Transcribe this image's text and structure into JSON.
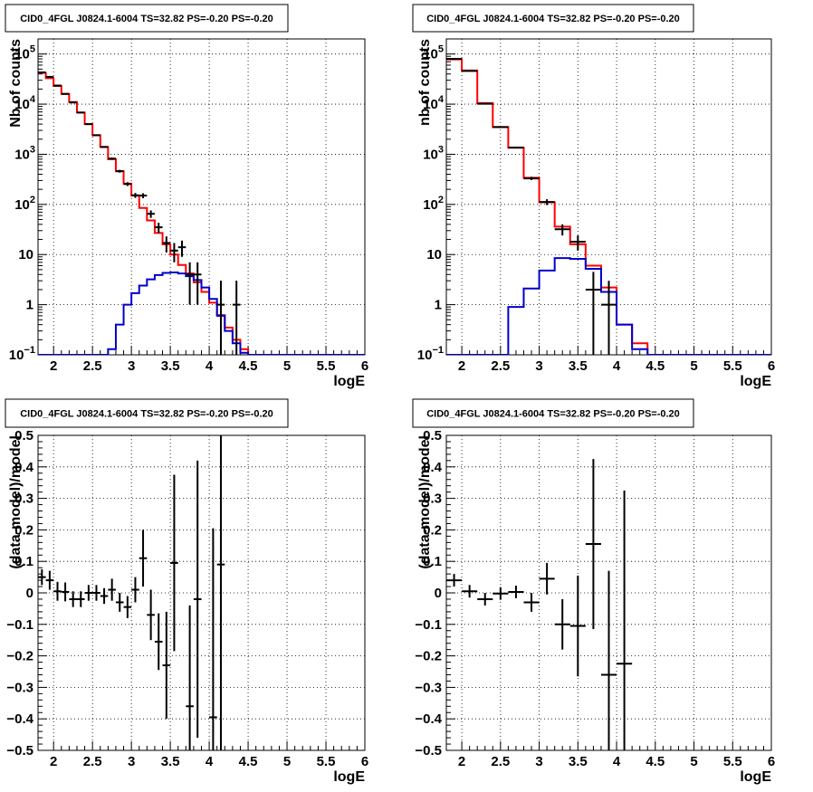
{
  "colors": {
    "data": "#000000",
    "total_model": "#ff0000",
    "source_model": "#0000cc",
    "grid": "#000000",
    "frame": "#000000"
  },
  "chart_data": [
    {
      "type": "line",
      "title": "CID0_4FGL J0824.1-6004 TS=32.82 PS=-0.20 PS=-0.20",
      "xlabel": "logE",
      "ylabel": "Nb of counts",
      "xlim": [
        1.8,
        6
      ],
      "ylim": [
        0.1,
        200000
      ],
      "yscale": "log",
      "grid": true,
      "xticks": [
        "2",
        "2.5",
        "3",
        "3.5",
        "4",
        "4.5",
        "5",
        "5.5",
        "6"
      ],
      "yticks": [
        {
          "value": 0.1,
          "label": "10",
          "sup": "−1"
        },
        {
          "value": 1,
          "label": "1",
          "sup": ""
        },
        {
          "value": 10,
          "label": "10",
          "sup": ""
        },
        {
          "value": 100,
          "label": "10",
          "sup": "2"
        },
        {
          "value": 1000,
          "label": "10",
          "sup": "3"
        },
        {
          "value": 10000,
          "label": "10",
          "sup": "4"
        },
        {
          "value": 100000,
          "label": "10",
          "sup": "5"
        }
      ],
      "bin_edges": [
        1.8,
        1.9,
        2.0,
        2.1,
        2.2,
        2.3,
        2.4,
        2.5,
        2.6,
        2.7,
        2.8,
        2.9,
        3.0,
        3.1,
        3.2,
        3.3,
        3.4,
        3.5,
        3.6,
        3.7,
        3.8,
        3.9,
        4.0,
        4.1,
        4.2,
        4.3,
        4.4,
        4.5,
        4.6,
        4.7,
        4.8,
        4.9,
        5.0,
        5.1,
        5.2,
        5.3,
        5.4,
        5.5,
        5.6,
        5.7,
        5.8,
        5.9,
        6.0
      ],
      "series": [
        {
          "role": "total_model",
          "step": [
            42000,
            33000,
            23000,
            16000,
            11000,
            6800,
            4000,
            2400,
            1400,
            800,
            460,
            260,
            150,
            85,
            48,
            27,
            16,
            10,
            6.2,
            4.2,
            2.8,
            1.8,
            1.1,
            0.62,
            0.35,
            0.2,
            0.13,
            0.1,
            0.1,
            0.1,
            0.1,
            0.1,
            0.1,
            0.1,
            0.1,
            0.1,
            0.1,
            0.1,
            0.1,
            0.1,
            0.1,
            0.1
          ]
        },
        {
          "role": "source_model",
          "step": [
            0.1,
            0.1,
            0.1,
            0.1,
            0.1,
            0.1,
            0.1,
            0.1,
            0.1,
            0.13,
            0.4,
            1.0,
            1.7,
            2.4,
            3.2,
            3.9,
            4.3,
            4.4,
            4.2,
            3.7,
            3.1,
            2.2,
            1.3,
            0.6,
            0.3,
            0.17,
            0.11,
            0.1,
            0.1,
            0.1,
            0.1,
            0.1,
            0.1,
            0.1,
            0.1,
            0.1,
            0.1,
            0.1,
            0.1,
            0.1,
            0.1,
            0.1
          ]
        },
        {
          "role": "data",
          "points": [
            {
              "x": 1.85,
              "y": 43000,
              "err": 300
            },
            {
              "x": 1.95,
              "y": 35000,
              "err": 300
            },
            {
              "x": 2.05,
              "y": 23500,
              "err": 250
            },
            {
              "x": 2.15,
              "y": 16000,
              "err": 200
            },
            {
              "x": 2.25,
              "y": 10800,
              "err": 150
            },
            {
              "x": 2.35,
              "y": 6800,
              "err": 120
            },
            {
              "x": 2.45,
              "y": 4000,
              "err": 90
            },
            {
              "x": 2.55,
              "y": 2400,
              "err": 70
            },
            {
              "x": 2.65,
              "y": 1400,
              "err": 50
            },
            {
              "x": 2.75,
              "y": 820,
              "err": 40
            },
            {
              "x": 2.85,
              "y": 460,
              "err": 30
            },
            {
              "x": 2.95,
              "y": 255,
              "err": 22
            },
            {
              "x": 3.05,
              "y": 152,
              "err": 17
            },
            {
              "x": 3.15,
              "y": 150,
              "err": 17
            },
            {
              "x": 3.25,
              "y": 65,
              "err": 11
            },
            {
              "x": 3.35,
              "y": 35,
              "err": 8
            },
            {
              "x": 3.45,
              "y": 17,
              "err": 6
            },
            {
              "x": 3.55,
              "y": 12,
              "err": 5
            },
            {
              "x": 3.65,
              "y": 14,
              "err": 5
            },
            {
              "x": 3.75,
              "y": 4,
              "err": 3
            },
            {
              "x": 3.85,
              "y": 4,
              "err": 3
            },
            {
              "x": 4.15,
              "y": 1,
              "err": 2
            },
            {
              "x": 4.35,
              "y": 1,
              "err": 2
            }
          ]
        }
      ]
    },
    {
      "type": "line",
      "title": "CID0_4FGL J0824.1-6004 TS=32.82 PS=-0.20 PS=-0.20",
      "xlabel": "logE",
      "ylabel": "nb of counts",
      "xlim": [
        1.8,
        6
      ],
      "ylim": [
        0.1,
        200000
      ],
      "yscale": "log",
      "grid": true,
      "xticks": [
        "2",
        "2.5",
        "3",
        "3.5",
        "4",
        "4.5",
        "5",
        "5.5",
        "6"
      ],
      "yticks": [
        {
          "value": 0.1,
          "label": "10",
          "sup": "−1"
        },
        {
          "value": 1,
          "label": "1",
          "sup": ""
        },
        {
          "value": 10,
          "label": "10",
          "sup": ""
        },
        {
          "value": 100,
          "label": "10",
          "sup": "2"
        },
        {
          "value": 1000,
          "label": "10",
          "sup": "3"
        },
        {
          "value": 10000,
          "label": "10",
          "sup": "4"
        },
        {
          "value": 100000,
          "label": "10",
          "sup": "5"
        }
      ],
      "bin_edges": [
        1.8,
        2.0,
        2.2,
        2.4,
        2.6,
        2.8,
        3.0,
        3.2,
        3.4,
        3.6,
        3.8,
        4.0,
        4.2,
        4.4,
        4.6,
        4.8,
        5.0,
        5.2,
        5.4,
        5.6,
        5.8,
        6.0
      ],
      "series": [
        {
          "role": "total_model",
          "step": [
            78000,
            47000,
            10500,
            3500,
            1350,
            340,
            110,
            36,
            16,
            6,
            2.2,
            0.4,
            0.17,
            0.1,
            0.1,
            0.1,
            0.1,
            0.1,
            0.1,
            0.1,
            0.1
          ]
        },
        {
          "role": "source_model",
          "step": [
            0.1,
            0.1,
            0.1,
            0.1,
            0.9,
            2.1,
            4.8,
            8.5,
            8.2,
            5.2,
            1.8,
            0.4,
            0.13,
            0.1,
            0.1,
            0.1,
            0.1,
            0.1,
            0.1,
            0.1,
            0.1
          ]
        },
        {
          "role": "data",
          "points": [
            {
              "x": 1.9,
              "y": 80000,
              "err": 400
            },
            {
              "x": 2.1,
              "y": 46000,
              "err": 300
            },
            {
              "x": 2.3,
              "y": 10200,
              "err": 150
            },
            {
              "x": 2.5,
              "y": 3500,
              "err": 80
            },
            {
              "x": 2.7,
              "y": 1360,
              "err": 50
            },
            {
              "x": 2.9,
              "y": 330,
              "err": 25
            },
            {
              "x": 3.1,
              "y": 112,
              "err": 15
            },
            {
              "x": 3.3,
              "y": 32,
              "err": 8
            },
            {
              "x": 3.5,
              "y": 18,
              "err": 6
            },
            {
              "x": 3.7,
              "y": 2,
              "err": 2.5
            },
            {
              "x": 3.9,
              "y": 1,
              "err": 2
            }
          ]
        }
      ]
    },
    {
      "type": "scatter",
      "title": "CID0_4FGL J0824.1-6004 TS=32.82 PS=-0.20 PS=-0.20",
      "xlabel": "logE",
      "ylabel": "(data-model)/model",
      "xlim": [
        1.8,
        6
      ],
      "ylim": [
        -0.5,
        0.5
      ],
      "yscale": "linear",
      "grid": true,
      "xticks": [
        "2",
        "2.5",
        "3",
        "3.5",
        "4",
        "4.5",
        "5",
        "5.5",
        "6"
      ],
      "yticks": [
        {
          "value": -0.5,
          "label": "−0.5",
          "sup": ""
        },
        {
          "value": -0.4,
          "label": "−0.4",
          "sup": ""
        },
        {
          "value": -0.3,
          "label": "−0.3",
          "sup": ""
        },
        {
          "value": -0.2,
          "label": "−0.2",
          "sup": ""
        },
        {
          "value": -0.1,
          "label": "−0.1",
          "sup": ""
        },
        {
          "value": 0,
          "label": "0",
          "sup": ""
        },
        {
          "value": 0.1,
          "label": "0.1",
          "sup": ""
        },
        {
          "value": 0.2,
          "label": "0.2",
          "sup": ""
        },
        {
          "value": 0.3,
          "label": "0.3",
          "sup": ""
        },
        {
          "value": 0.4,
          "label": "0.4",
          "sup": ""
        },
        {
          "value": 0.5,
          "label": "0.5",
          "sup": ""
        }
      ],
      "xerr": 0.05,
      "series": [
        {
          "role": "data",
          "points": [
            {
              "x": 1.85,
              "y": 0.05,
              "err": 0.025
            },
            {
              "x": 1.95,
              "y": 0.04,
              "err": 0.03
            },
            {
              "x": 2.05,
              "y": 0.005,
              "err": 0.03
            },
            {
              "x": 2.15,
              "y": 0.003,
              "err": 0.03
            },
            {
              "x": 2.25,
              "y": -0.02,
              "err": 0.025
            },
            {
              "x": 2.35,
              "y": -0.02,
              "err": 0.025
            },
            {
              "x": 2.45,
              "y": 0.0,
              "err": 0.025
            },
            {
              "x": 2.55,
              "y": 0.0,
              "err": 0.025
            },
            {
              "x": 2.65,
              "y": -0.01,
              "err": 0.025
            },
            {
              "x": 2.75,
              "y": 0.01,
              "err": 0.035
            },
            {
              "x": 2.85,
              "y": -0.03,
              "err": 0.03
            },
            {
              "x": 2.95,
              "y": -0.045,
              "err": 0.035
            },
            {
              "x": 3.05,
              "y": 0.01,
              "err": 0.04
            },
            {
              "x": 3.15,
              "y": 0.11,
              "err": 0.09
            },
            {
              "x": 3.25,
              "y": -0.07,
              "err": 0.08
            },
            {
              "x": 3.35,
              "y": -0.155,
              "err": 0.09
            },
            {
              "x": 3.45,
              "y": -0.23,
              "err": 0.17
            },
            {
              "x": 3.55,
              "y": 0.095,
              "err": 0.28
            },
            {
              "x": 3.75,
              "y": -0.36,
              "err": 0.32
            },
            {
              "x": 3.85,
              "y": -0.02,
              "err": 0.44
            },
            {
              "x": 4.05,
              "y": -0.395,
              "err": 0.6
            },
            {
              "x": 4.15,
              "y": 0.09,
              "err": 0.6
            }
          ]
        }
      ]
    },
    {
      "type": "scatter",
      "title": "CID0_4FGL J0824.1-6004 TS=32.82 PS=-0.20 PS=-0.20",
      "xlabel": "logE",
      "ylabel": "(data-model)/model",
      "xlim": [
        1.8,
        6
      ],
      "ylim": [
        -0.5,
        0.5
      ],
      "yscale": "linear",
      "grid": true,
      "xticks": [
        "2",
        "2.5",
        "3",
        "3.5",
        "4",
        "4.5",
        "5",
        "5.5",
        "6"
      ],
      "yticks": [
        {
          "value": -0.5,
          "label": "−0.5",
          "sup": ""
        },
        {
          "value": -0.4,
          "label": "−0.4",
          "sup": ""
        },
        {
          "value": -0.3,
          "label": "−0.3",
          "sup": ""
        },
        {
          "value": -0.2,
          "label": "−0.2",
          "sup": ""
        },
        {
          "value": -0.1,
          "label": "−0.1",
          "sup": ""
        },
        {
          "value": 0,
          "label": "0",
          "sup": ""
        },
        {
          "value": 0.1,
          "label": "0.1",
          "sup": ""
        },
        {
          "value": 0.2,
          "label": "0.2",
          "sup": ""
        },
        {
          "value": 0.3,
          "label": "0.3",
          "sup": ""
        },
        {
          "value": 0.4,
          "label": "0.4",
          "sup": ""
        },
        {
          "value": 0.5,
          "label": "0.5",
          "sup": ""
        }
      ],
      "xerr": 0.1,
      "series": [
        {
          "role": "data",
          "points": [
            {
              "x": 1.9,
              "y": 0.04,
              "err": 0.02
            },
            {
              "x": 2.1,
              "y": 0.005,
              "err": 0.02
            },
            {
              "x": 2.3,
              "y": -0.02,
              "err": 0.02
            },
            {
              "x": 2.5,
              "y": -0.002,
              "err": 0.02
            },
            {
              "x": 2.7,
              "y": 0.003,
              "err": 0.02
            },
            {
              "x": 2.9,
              "y": -0.03,
              "err": 0.03
            },
            {
              "x": 3.1,
              "y": 0.045,
              "err": 0.05
            },
            {
              "x": 3.3,
              "y": -0.1,
              "err": 0.08
            },
            {
              "x": 3.5,
              "y": -0.105,
              "err": 0.16
            },
            {
              "x": 3.7,
              "y": 0.155,
              "err": 0.27
            },
            {
              "x": 3.9,
              "y": -0.26,
              "err": 0.33
            },
            {
              "x": 4.1,
              "y": -0.225,
              "err": 0.55
            }
          ]
        }
      ]
    }
  ]
}
